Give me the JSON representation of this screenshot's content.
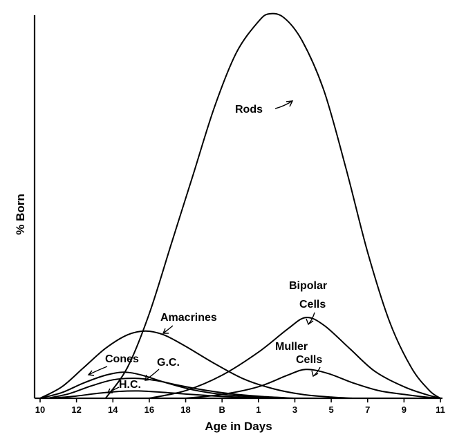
{
  "chart_data": {
    "type": "line",
    "title": "",
    "xlabel": "Age in Days",
    "ylabel": "% Born",
    "grid": false,
    "legend": "none",
    "x_categories": [
      "10",
      "12",
      "14",
      "16",
      "18",
      "B",
      "1",
      "3",
      "5",
      "7",
      "9",
      "11"
    ],
    "x_note": "x expressed as category index positions (0 = '10', 11 = '11'); y is relative height 0-100",
    "ylim": [
      0,
      100
    ],
    "series": [
      {
        "name": "Rods",
        "points": [
          [
            1.8,
            0
          ],
          [
            2.4,
            8
          ],
          [
            3,
            22
          ],
          [
            3.6,
            40
          ],
          [
            4.2,
            58
          ],
          [
            4.8,
            76
          ],
          [
            5.4,
            90
          ],
          [
            6,
            98
          ],
          [
            6.3,
            100
          ],
          [
            6.7,
            99
          ],
          [
            7.2,
            93
          ],
          [
            7.8,
            80
          ],
          [
            8.4,
            60
          ],
          [
            9,
            38
          ],
          [
            9.6,
            20
          ],
          [
            10.2,
            8
          ],
          [
            10.7,
            2
          ],
          [
            11,
            0
          ]
        ]
      },
      {
        "name": "Bipolar Cells",
        "points": [
          [
            3,
            0
          ],
          [
            4,
            2
          ],
          [
            5,
            6
          ],
          [
            6,
            12
          ],
          [
            6.8,
            18
          ],
          [
            7.3,
            21
          ],
          [
            7.8,
            19
          ],
          [
            8.5,
            13
          ],
          [
            9.2,
            7
          ],
          [
            10,
            3
          ],
          [
            10.6,
            1
          ],
          [
            11,
            0
          ]
        ]
      },
      {
        "name": "Muller Cells",
        "points": [
          [
            4,
            0
          ],
          [
            5,
            1
          ],
          [
            6,
            3
          ],
          [
            6.8,
            6
          ],
          [
            7.3,
            7.5
          ],
          [
            7.9,
            6.5
          ],
          [
            8.6,
            4
          ],
          [
            9.3,
            2
          ],
          [
            10,
            1
          ],
          [
            10.6,
            0.3
          ],
          [
            11,
            0
          ]
        ]
      },
      {
        "name": "Amacrines",
        "points": [
          [
            0,
            0
          ],
          [
            0.6,
            3
          ],
          [
            1.2,
            8
          ],
          [
            1.8,
            13
          ],
          [
            2.4,
            16.5
          ],
          [
            2.9,
            17.5
          ],
          [
            3.4,
            16.5
          ],
          [
            4,
            13.5
          ],
          [
            4.8,
            9
          ],
          [
            5.6,
            5
          ],
          [
            6.4,
            2.5
          ],
          [
            7.2,
            1
          ],
          [
            8,
            0.3
          ],
          [
            8.6,
            0
          ]
        ]
      },
      {
        "name": "Cones",
        "points": [
          [
            0,
            0
          ],
          [
            0.6,
            1.5
          ],
          [
            1.2,
            4
          ],
          [
            1.8,
            6
          ],
          [
            2.3,
            6.8
          ],
          [
            2.8,
            6
          ],
          [
            3.4,
            4.2
          ],
          [
            4.2,
            2.2
          ],
          [
            5,
            1
          ],
          [
            5.8,
            0.4
          ],
          [
            6.4,
            0
          ]
        ]
      },
      {
        "name": "G.C.",
        "points": [
          [
            0.2,
            0
          ],
          [
            0.8,
            1.2
          ],
          [
            1.4,
            3.2
          ],
          [
            2,
            4.8
          ],
          [
            2.6,
            5.2
          ],
          [
            3.2,
            4.6
          ],
          [
            3.8,
            3.4
          ],
          [
            4.6,
            2
          ],
          [
            5.4,
            1
          ],
          [
            6.2,
            0.4
          ],
          [
            7,
            0
          ]
        ]
      },
      {
        "name": "H.C.",
        "points": [
          [
            0.3,
            0
          ],
          [
            1,
            0.6
          ],
          [
            1.6,
            1.3
          ],
          [
            2.2,
            1.8
          ],
          [
            2.7,
            1.9
          ],
          [
            3.3,
            1.6
          ],
          [
            4,
            1.1
          ],
          [
            4.8,
            0.6
          ],
          [
            5.6,
            0.2
          ],
          [
            6.2,
            0
          ]
        ]
      }
    ],
    "labels": {
      "rods": "Rods",
      "bipolar_line1": "Bipolar",
      "bipolar_line2": "Cells",
      "muller_line1": "Muller",
      "muller_line2": "Cells",
      "amacrines": "Amacrines",
      "cones": "Cones",
      "gc": "G.C.",
      "hc": "H.C."
    }
  }
}
